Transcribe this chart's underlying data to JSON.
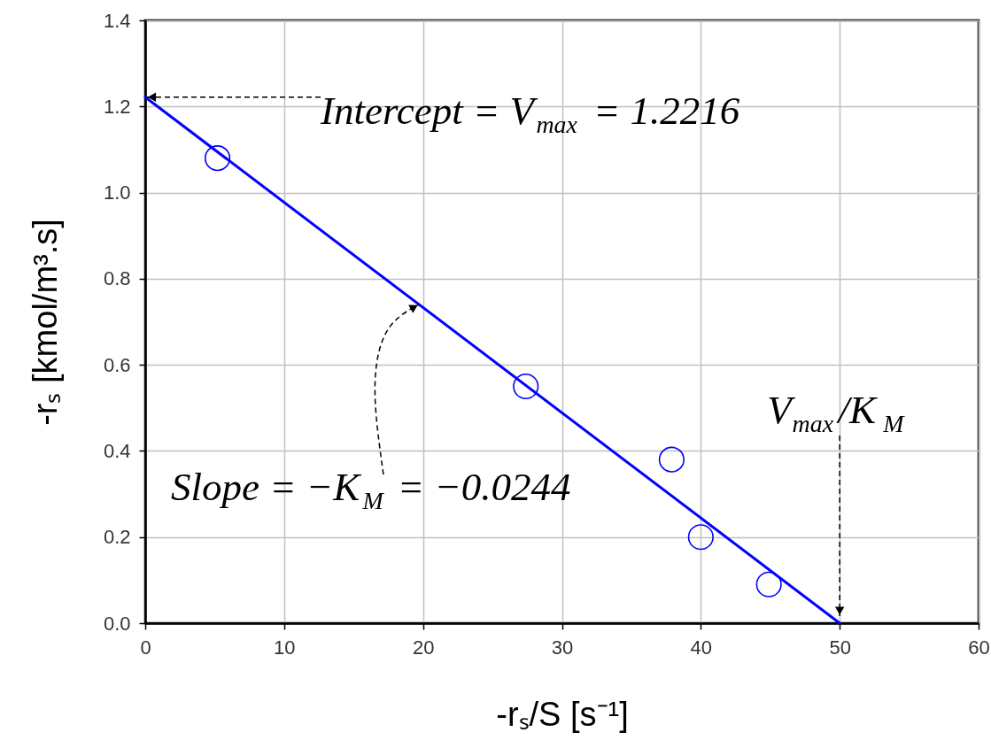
{
  "chart_data": {
    "type": "scatter",
    "xlabel": "-rₛ/S [s⁻¹]",
    "ylabel": "-rₛ [kmol/m³.s]",
    "xlim": [
      0,
      60
    ],
    "ylim": [
      0,
      1.4
    ],
    "xticks": [
      0,
      10,
      20,
      30,
      40,
      50,
      60
    ],
    "yticks": [
      {
        "value": 0,
        "label": "0.0"
      },
      0.2,
      0.4,
      0.6,
      0.8,
      {
        "value": 1,
        "label": "1.0"
      },
      1.2,
      1.4
    ],
    "grid": true,
    "series": [
      {
        "color": "#0000ff",
        "marker": "circle",
        "x": [
          5.2,
          27.4,
          37.9,
          40,
          44.9
        ],
        "values": [
          1.08,
          0.55,
          0.38,
          0.2,
          0.09
        ]
      },
      {
        "type": "line",
        "color": "#0000ff",
        "marker": "none",
        "x": [
          0,
          50
        ],
        "values": [
          1.2216,
          0
        ]
      }
    ],
    "annotations": [
      {
        "text": "Intercept = V$_{max}$ = 1.2216",
        "x": 0,
        "y": 1.2216
      },
      {
        "text": "Slope = −K$_{M}$ = −0.0244",
        "x": 19.7,
        "y": 0.74
      },
      {
        "text": "V$_{max}$/K$_{M}$",
        "x": 50,
        "y": 0
      }
    ]
  }
}
